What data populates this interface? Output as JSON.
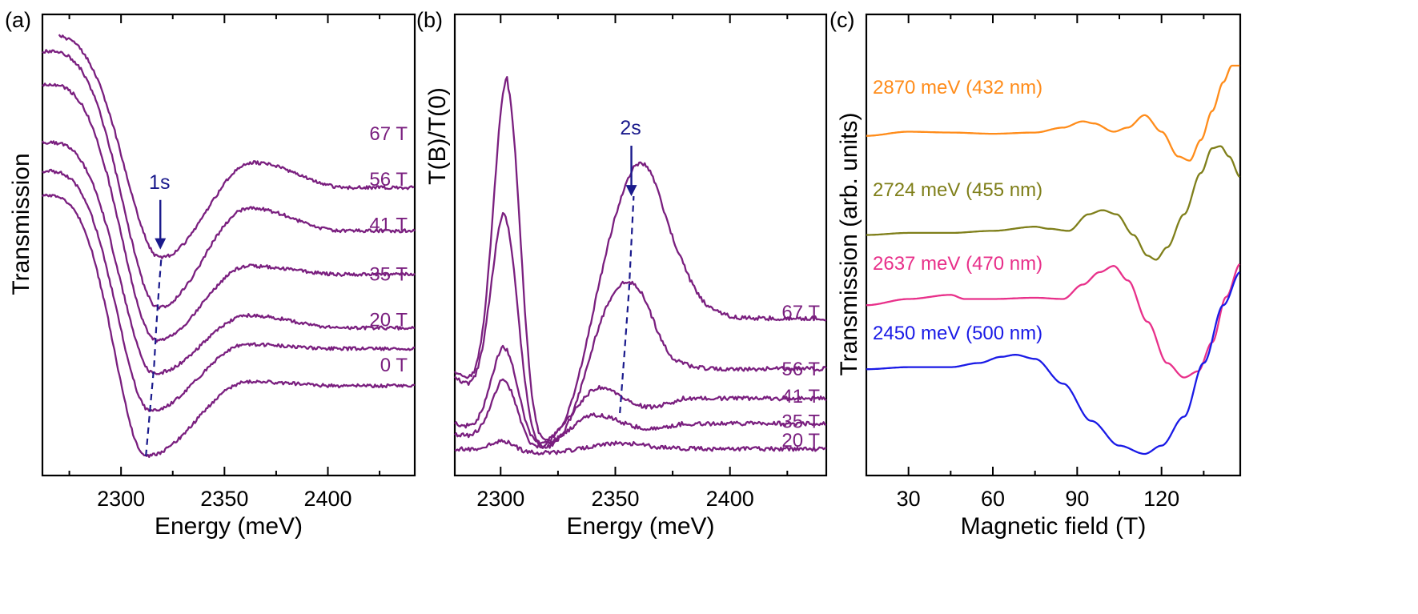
{
  "colors": {
    "purple": "#7a1f7f",
    "navy": "#1a1a8c",
    "orange": "#ff8c1a",
    "olive": "#7f7f1a",
    "pink": "#e8308a",
    "blue": "#1a1ae6"
  },
  "chart_data": [
    {
      "type": "line",
      "panel_label": "(a)",
      "xlabel": "Energy (meV)",
      "ylabel": "Transmission",
      "xlim": [
        2262,
        2442
      ],
      "ylim": [
        0,
        1
      ],
      "xticks": [
        2300,
        2350,
        2400
      ],
      "x_minor_ticks": [
        2275,
        2325,
        2375,
        2425
      ],
      "annotation": {
        "text": "1s",
        "arrow_x": 2319,
        "arrow_top": 0.64,
        "arrow_bottom": 0.52
      },
      "guide_line": [
        [
          2312,
          0.02
        ],
        [
          2314,
          0.13
        ],
        [
          2316,
          0.24
        ],
        [
          2317,
          0.33
        ],
        [
          2318.5,
          0.44
        ],
        [
          2319.5,
          0.5
        ]
      ],
      "series": [
        {
          "name": "67 T",
          "offset": 0.8,
          "min_x": 2319,
          "min_val": 0.5,
          "peak_x": 2364,
          "peak_val": 0.73,
          "tail": 0.67,
          "start": 1.04
        },
        {
          "name": "56 T",
          "offset": 0.69,
          "min_x": 2318,
          "min_val": 0.38,
          "peak_x": 2362,
          "peak_val": 0.62,
          "tail": 0.565,
          "start": 1.0
        },
        {
          "name": "41 T",
          "offset": 0.58,
          "min_x": 2317,
          "min_val": 0.3,
          "peak_x": 2362,
          "peak_val": 0.48,
          "tail": 0.46,
          "start": 0.92
        },
        {
          "name": "35 T",
          "offset": 0.46,
          "min_x": 2316,
          "min_val": 0.22,
          "peak_x": 2362,
          "peak_val": 0.36,
          "tail": 0.33,
          "start": 0.78
        },
        {
          "name": "20 T",
          "offset": 0.35,
          "min_x": 2314,
          "min_val": 0.13,
          "peak_x": 2361,
          "peak_val": 0.29,
          "tail": 0.28,
          "start": 0.71
        },
        {
          "name": "0 T",
          "offset": 0.24,
          "min_x": 2312,
          "min_val": 0.02,
          "peak_x": 2362,
          "peak_val": 0.2,
          "tail": 0.19,
          "start": 0.65
        }
      ]
    },
    {
      "type": "line",
      "panel_label": "(b)",
      "xlabel": "Energy (meV)",
      "ylabel": "T(B)/T(0)",
      "xlim": [
        2280,
        2442
      ],
      "ylim": [
        0,
        1
      ],
      "xticks": [
        2300,
        2350,
        2400
      ],
      "x_minor_ticks": [
        2325,
        2375,
        2425
      ],
      "annotation": {
        "text": "2s",
        "arrow_x": 2357,
        "arrow_top": 0.73,
        "arrow_bottom": 0.61
      },
      "guide_line": [
        [
          2352,
          0.095
        ],
        [
          2354,
          0.24
        ],
        [
          2356,
          0.39
        ],
        [
          2358,
          0.61
        ]
      ],
      "series": [
        {
          "name": "67 T",
          "offset": 0.335,
          "base": 0.39,
          "p1_x": 2303,
          "p1_h": 1.0,
          "dip_x": 2325,
          "dip_val": 0.26,
          "p2_x": 2356,
          "p2_h": 0.61,
          "tail": 0.32
        },
        {
          "name": "56 T",
          "offset": 0.2,
          "base": 0.36,
          "p1_x": 2302,
          "p1_h": 0.67,
          "dip_x": 2324,
          "dip_val": 0.15,
          "p2_x": 2350,
          "p2_h": 0.39,
          "tail": 0.2
        },
        {
          "name": "41 T",
          "offset": 0.135,
          "base": 0.14,
          "p1_x": 2302,
          "p1_h": 0.29,
          "dip_x": 2325,
          "dip_val": 0.14,
          "p2_x": 2340,
          "p2_h": 0.19,
          "tail": 0.13
        },
        {
          "name": "35 T",
          "offset": 0.075,
          "base": 0.09,
          "p1_x": 2302,
          "p1_h": 0.2,
          "dip_x": 2322,
          "dip_val": 0.09,
          "p2_x": 2339,
          "p2_h": 0.11,
          "tail": 0.07
        },
        {
          "name": "20 T",
          "offset": 0.03,
          "base": 0.02,
          "p1_x": 2302,
          "p1_h": 0.036,
          "dip_x": 2318,
          "dip_val": 0.015,
          "p2_x": 2350,
          "p2_h": 0.025,
          "tail": 0.01
        }
      ]
    },
    {
      "type": "line",
      "panel_label": "(c)",
      "xlabel": "Magnetic field (T)",
      "ylabel": "Transmission (arb. units)",
      "xlim": [
        15,
        148
      ],
      "ylim": [
        0,
        1
      ],
      "xticks": [
        30,
        60,
        90,
        120
      ],
      "x_minor_ticks": [
        15,
        45,
        75,
        105,
        135
      ],
      "series": [
        {
          "name": "2870 meV (432 nm)",
          "color_key": "orange",
          "points": [
            [
              15,
              0.77
            ],
            [
              30,
              0.78
            ],
            [
              45,
              0.778
            ],
            [
              60,
              0.775
            ],
            [
              75,
              0.778
            ],
            [
              85,
              0.79
            ],
            [
              92,
              0.805
            ],
            [
              96,
              0.8
            ],
            [
              103,
              0.78
            ],
            [
              108,
              0.79
            ],
            [
              114,
              0.82
            ],
            [
              120,
              0.78
            ],
            [
              126,
              0.72
            ],
            [
              130,
              0.71
            ],
            [
              134,
              0.76
            ],
            [
              138,
              0.83
            ],
            [
              142,
              0.9
            ],
            [
              145,
              0.94
            ],
            [
              148,
              0.94
            ]
          ]
        },
        {
          "name": "2724 meV (455 nm)",
          "color_key": "olive",
          "points": [
            [
              15,
              0.53
            ],
            [
              30,
              0.535
            ],
            [
              45,
              0.535
            ],
            [
              60,
              0.54
            ],
            [
              75,
              0.55
            ],
            [
              80,
              0.545
            ],
            [
              87,
              0.54
            ],
            [
              94,
              0.58
            ],
            [
              99,
              0.59
            ],
            [
              104,
              0.58
            ],
            [
              110,
              0.53
            ],
            [
              115,
              0.48
            ],
            [
              118,
              0.47
            ],
            [
              122,
              0.5
            ],
            [
              128,
              0.58
            ],
            [
              134,
              0.68
            ],
            [
              138,
              0.74
            ],
            [
              141,
              0.745
            ],
            [
              144,
              0.72
            ],
            [
              148,
              0.67
            ]
          ]
        },
        {
          "name": "2637 meV (470 nm)",
          "color_key": "pink",
          "points": [
            [
              15,
              0.36
            ],
            [
              30,
              0.375
            ],
            [
              45,
              0.385
            ],
            [
              50,
              0.375
            ],
            [
              60,
              0.375
            ],
            [
              75,
              0.378
            ],
            [
              85,
              0.375
            ],
            [
              92,
              0.41
            ],
            [
              98,
              0.44
            ],
            [
              103,
              0.455
            ],
            [
              108,
              0.42
            ],
            [
              115,
              0.32
            ],
            [
              122,
              0.22
            ],
            [
              128,
              0.185
            ],
            [
              133,
              0.2
            ],
            [
              138,
              0.27
            ],
            [
              143,
              0.38
            ],
            [
              148,
              0.46
            ]
          ]
        },
        {
          "name": "2450 meV (500 nm)",
          "color_key": "blue",
          "points": [
            [
              15,
              0.205
            ],
            [
              30,
              0.21
            ],
            [
              45,
              0.21
            ],
            [
              55,
              0.22
            ],
            [
              63,
              0.235
            ],
            [
              68,
              0.24
            ],
            [
              75,
              0.23
            ],
            [
              85,
              0.17
            ],
            [
              95,
              0.08
            ],
            [
              105,
              0.02
            ],
            [
              114,
              0.0
            ],
            [
              120,
              0.02
            ],
            [
              128,
              0.09
            ],
            [
              135,
              0.22
            ],
            [
              142,
              0.36
            ],
            [
              148,
              0.44
            ]
          ]
        }
      ]
    }
  ]
}
